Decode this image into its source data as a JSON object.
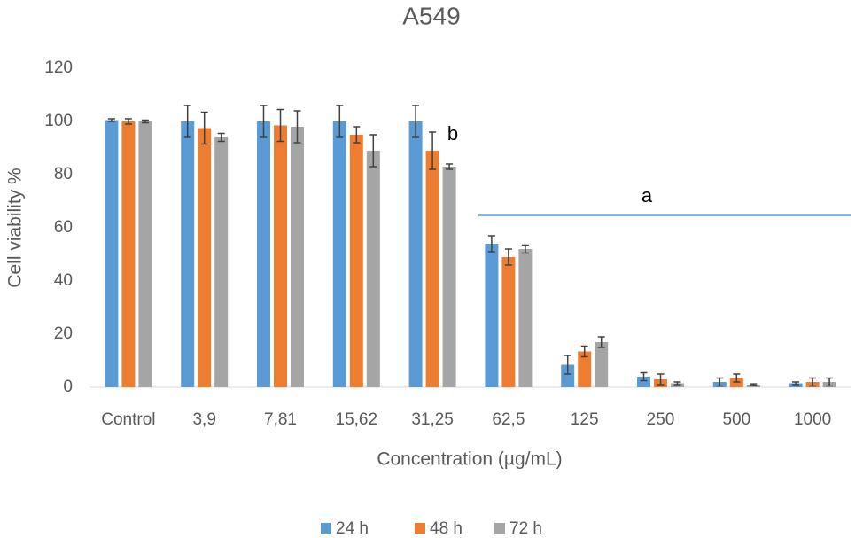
{
  "chart_data": {
    "type": "bar",
    "title": "A549",
    "x_label": "Concentration (µg/mL)",
    "y_label": "Cell viability %",
    "categories": [
      "Control",
      "3,9",
      "7,81",
      "15,62",
      "31,25",
      "62,5",
      "125",
      "250",
      "500",
      "1000"
    ],
    "series": [
      {
        "name": "24 h",
        "color": "#5b9bd5",
        "values": [
          100.5,
          100,
          100,
          100,
          100,
          54,
          8.5,
          4,
          2,
          1.5
        ],
        "errors": [
          0.5,
          6,
          6,
          6,
          6,
          3,
          3.5,
          1.5,
          1.5,
          0.5
        ]
      },
      {
        "name": "48 h",
        "color": "#ed7d31",
        "values": [
          100,
          97.5,
          98.5,
          95,
          89,
          49,
          13.5,
          3,
          3.5,
          2
        ],
        "errors": [
          1,
          6,
          6,
          3,
          7,
          3,
          2,
          2,
          1.5,
          1.5
        ]
      },
      {
        "name": "72 h",
        "color": "#a5a5a5",
        "values": [
          100,
          94,
          98,
          89,
          83,
          52,
          17,
          1.5,
          1,
          2
        ],
        "errors": [
          0.5,
          1.5,
          6,
          6,
          1,
          1.5,
          2,
          0.5,
          0.3,
          1.5
        ]
      }
    ],
    "annotations": [
      "a",
      "b"
    ],
    "ylim": [
      0,
      120
    ],
    "yticks": [
      0,
      20,
      40,
      60,
      80,
      100,
      120
    ],
    "grid": false,
    "legend": "bottom"
  }
}
